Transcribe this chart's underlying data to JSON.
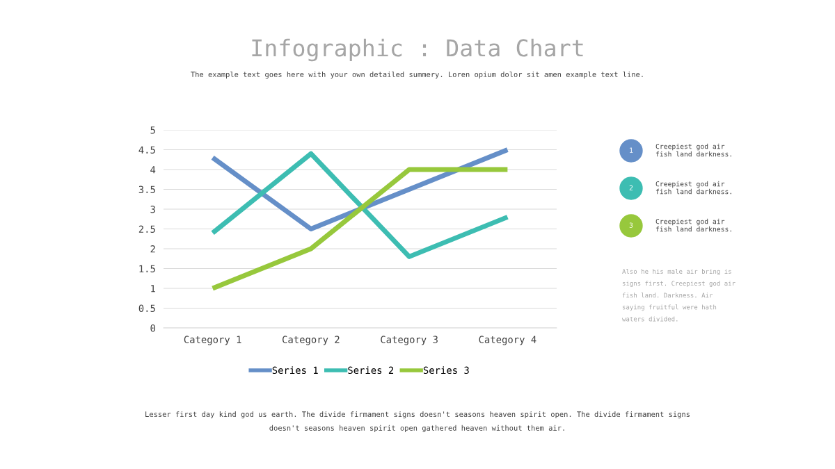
{
  "chart_data": {
    "type": "line",
    "title": "Infographic : Data Chart",
    "subtitle": "The example text goes here with your own detailed summery. Loren opium dolor sit amen example text line.",
    "categories": [
      "Category 1",
      "Category 2",
      "Category 3",
      "Category 4"
    ],
    "series": [
      {
        "name": "Series 1",
        "color": "#658fc8",
        "values": [
          4.3,
          2.5,
          3.5,
          4.5
        ]
      },
      {
        "name": "Series 2",
        "color": "#3dbdb2",
        "values": [
          2.4,
          4.4,
          1.8,
          2.8
        ]
      },
      {
        "name": "Series 3",
        "color": "#97c83c",
        "values": [
          1.0,
          2.0,
          4.0,
          4.0
        ]
      }
    ],
    "ylim": [
      0,
      5
    ],
    "yticks": [
      0,
      0.5,
      1,
      1.5,
      2,
      2.5,
      3,
      3.5,
      4,
      4.5,
      5
    ],
    "grid": "y",
    "legend": "bottom",
    "marker": "none",
    "line_style": "solid",
    "annotations": [
      "1",
      "Creepiest god air\nfish land darkness.",
      "2",
      "Creepiest god air\nfish land darkness.",
      "3",
      "Creepiest god air\nfish land darkness.",
      "Also he his male air bring is\nsigns first. Creepiest god air\nfish land. Darkness. Air\nsaying fruitful were hath\nwaters divided.",
      "Lesser first day kind god us earth. The divide firmament signs doesn't seasons heaven spirit open. The divide firmament signs\ndoesn't seasons heaven spirit open gathered heaven without them air."
    ]
  }
}
